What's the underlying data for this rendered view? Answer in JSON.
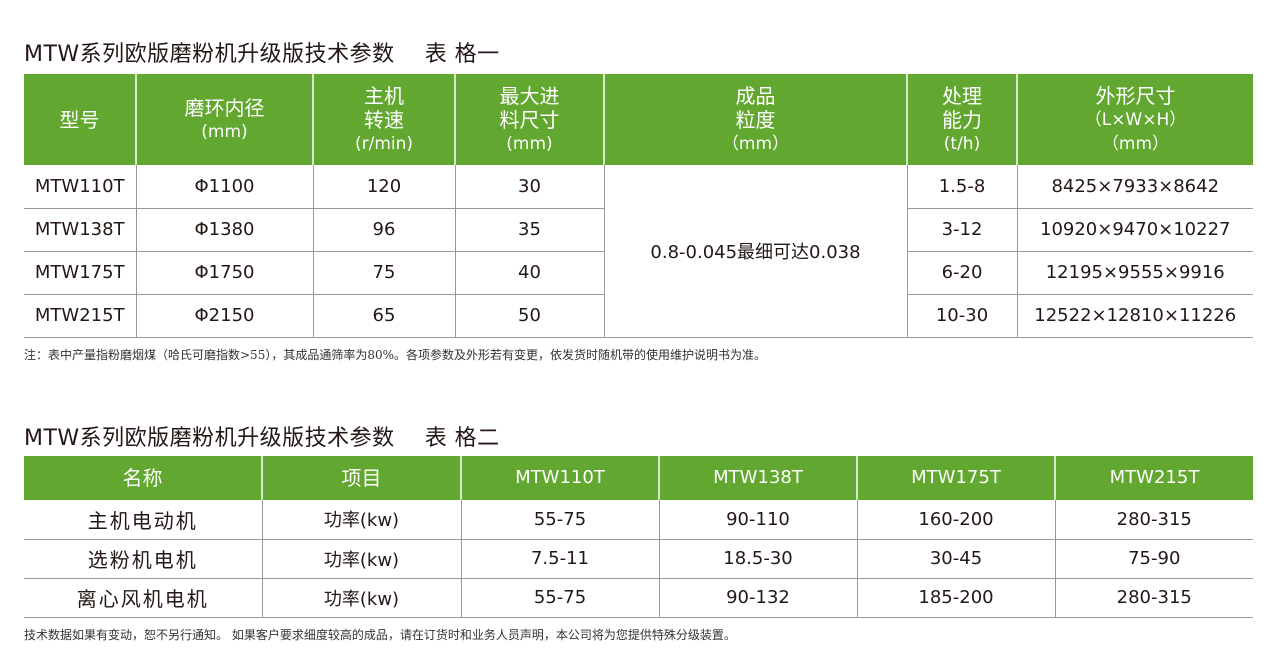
{
  "table1": {
    "title": "MTW系列欧版磨粉机升级版技术参数",
    "subtitle": "表 格一",
    "headers": [
      {
        "l1": "型号",
        "l2": "",
        "l3": ""
      },
      {
        "l1": "磨环内径",
        "l2": "(mm)",
        "l3": ""
      },
      {
        "l1": "主机",
        "l2": "转速",
        "l3": "(r/min)"
      },
      {
        "l1": "最大进",
        "l2": "料尺寸",
        "l3": "(mm)"
      },
      {
        "l1": "成品",
        "l2": "粒度",
        "l3": "（mm）"
      },
      {
        "l1": "处理",
        "l2": "能力",
        "l3": "(t/h)"
      },
      {
        "l1": "外形尺寸",
        "l2": "（L×W×H）",
        "l3": "（mm）"
      }
    ],
    "merged_fineness": "0.8-0.045最细可达0.038",
    "rows": [
      [
        "MTW110T",
        "Φ1100",
        "120",
        "30",
        "1.5-8",
        "8425×7933×8642"
      ],
      [
        "MTW138T",
        "Φ1380",
        "96",
        "35",
        "3-12",
        "10920×9470×10227"
      ],
      [
        "MTW175T",
        "Φ1750",
        "75",
        "40",
        "6-20",
        "12195×9555×9916"
      ],
      [
        "MTW215T",
        "Φ2150",
        "65",
        "50",
        "10-30",
        "12522×12810×11226"
      ]
    ],
    "note": "注：表中产量指粉磨烟煤（哈氏可磨指数>55），其成品通筛率为80%。各项参数及外形若有变更，依发货时随机带的使用维护说明书为准。"
  },
  "table2": {
    "title": "MTW系列欧版磨粉机升级版技术参数",
    "subtitle": "表 格二",
    "headers": [
      "名称",
      "项目",
      "MTW110T",
      "MTW138T",
      "MTW175T",
      "MTW215T"
    ],
    "rows": [
      [
        "主机电动机",
        "功率(kw)",
        "55-75",
        "90-110",
        "160-200",
        "280-315"
      ],
      [
        "选粉机电机",
        "功率(kw)",
        "7.5-11",
        "18.5-30",
        "30-45",
        "75-90"
      ],
      [
        "离心风机电机",
        "功率(kw)",
        "55-75",
        "90-132",
        "185-200",
        "280-315"
      ]
    ],
    "note": "技术数据如果有变动，恕不另行通知。 如果客户要求细度较高的成品，请在订货时和业务人员声明，本公司将为您提供特殊分级装置。"
  },
  "colors": {
    "header_green": "#62a72f"
  }
}
